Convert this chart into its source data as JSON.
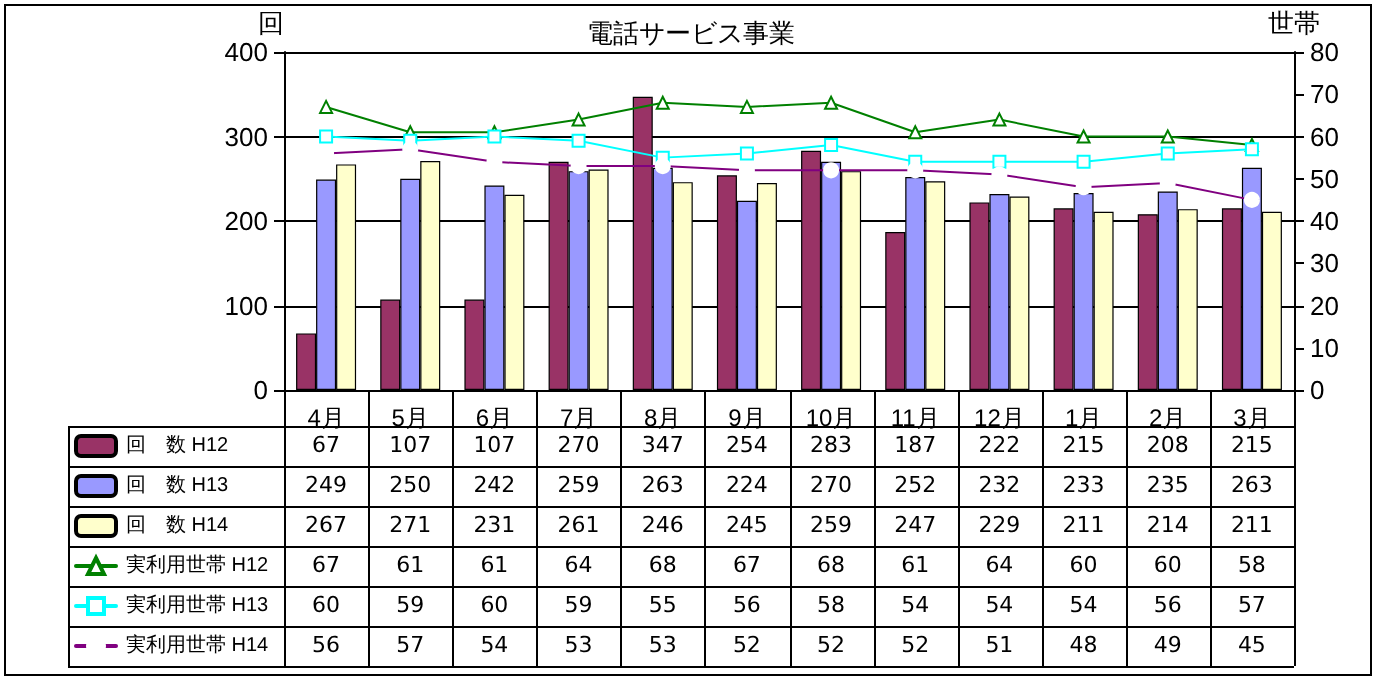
{
  "chart_data": {
    "type": "bar",
    "title": "電話サービス事業",
    "ylabel": "回",
    "y2label": "世帯",
    "categories": [
      "4月",
      "5月",
      "6月",
      "7月",
      "8月",
      "9月",
      "10月",
      "11月",
      "12月",
      "1月",
      "2月",
      "3月"
    ],
    "series": [
      {
        "name": "回　数 H12",
        "color": "#993366",
        "values": [
          67,
          107,
          107,
          270,
          347,
          254,
          283,
          187,
          222,
          215,
          208,
          215
        ]
      },
      {
        "name": "回　数 H13",
        "color": "#9999ff",
        "values": [
          249,
          250,
          242,
          259,
          263,
          224,
          270,
          252,
          232,
          233,
          235,
          263
        ]
      },
      {
        "name": "回　数 H14",
        "color": "#ffffcc",
        "values": [
          267,
          271,
          231,
          261,
          246,
          245,
          259,
          247,
          229,
          211,
          214,
          211
        ]
      },
      {
        "name": "実利用世帯 H12",
        "type": "line",
        "axis": "y2",
        "marker": "triangle",
        "color": "#008000",
        "values": [
          67,
          61,
          61,
          64,
          68,
          67,
          68,
          61,
          64,
          60,
          60,
          58
        ]
      },
      {
        "name": "実利用世帯 H13",
        "type": "line",
        "axis": "y2",
        "marker": "square",
        "color": "#00ffff",
        "values": [
          60,
          59,
          60,
          59,
          55,
          56,
          58,
          54,
          54,
          54,
          56,
          57
        ]
      },
      {
        "name": "実利用世帯 H14",
        "type": "line",
        "axis": "y2",
        "marker": "circle",
        "color": "#800080",
        "values": [
          56,
          57,
          54,
          53,
          53,
          52,
          52,
          52,
          51,
          48,
          49,
          45
        ]
      }
    ],
    "ylim": [
      0,
      400
    ],
    "yticks": [
      0,
      100,
      200,
      300,
      400
    ],
    "y2lim": [
      0,
      80
    ],
    "y2ticks": [
      0,
      10,
      20,
      30,
      40,
      50,
      60,
      70,
      80
    ],
    "grid": "y",
    "legend": "bottom left",
    "data_labels": true
  }
}
